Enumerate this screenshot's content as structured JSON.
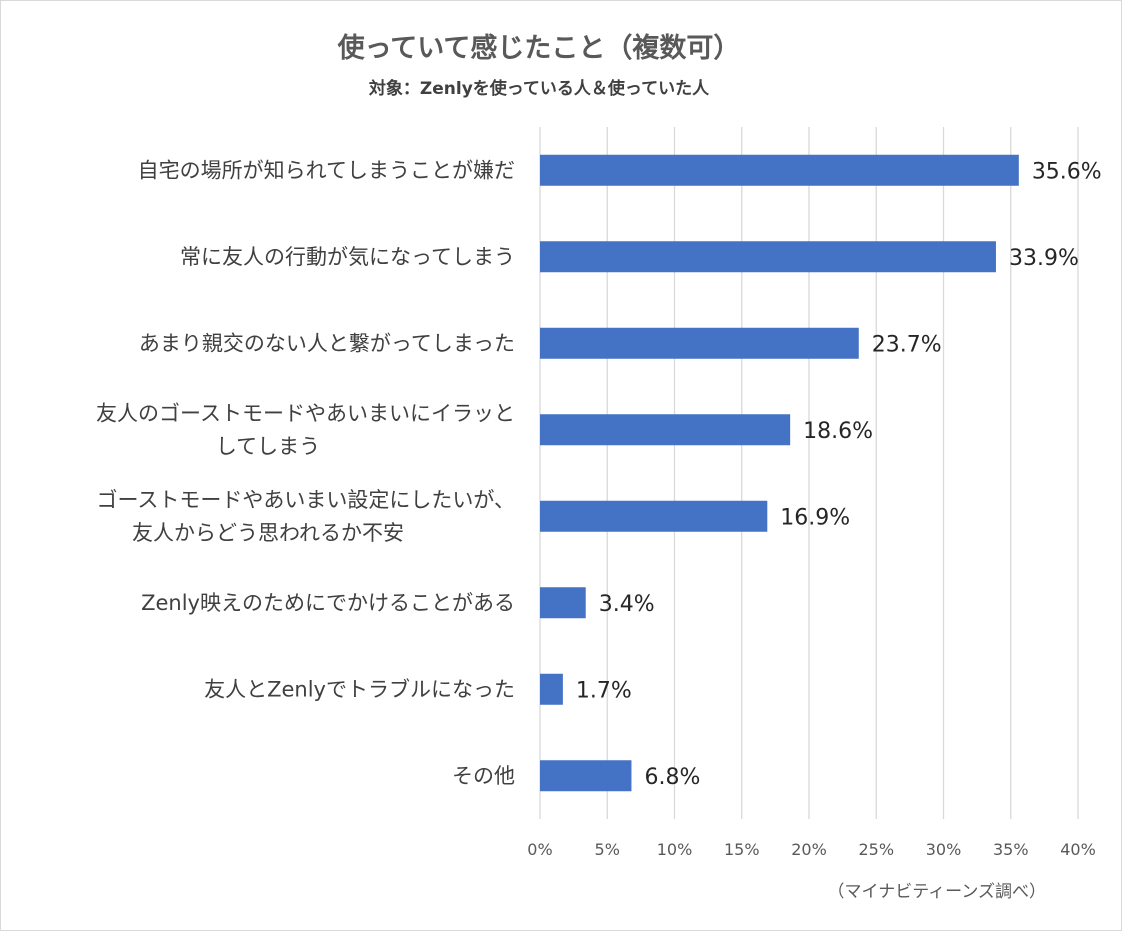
{
  "chart_data": {
    "type": "bar",
    "orientation": "horizontal",
    "title": "使っていて感じたこと（複数可）",
    "subtitle": "対象：Zenlyを使っている人＆使っていた人",
    "categories": [
      [
        "自宅の場所が知られてしまうことが嫌だ"
      ],
      [
        "常に友人の行動が気になってしまう"
      ],
      [
        "あまり親交のない人と繋がってしまった"
      ],
      [
        "友人のゴーストモードやあいまいにイラッと",
        "してしまう"
      ],
      [
        "ゴーストモードやあいまい設定にしたいが、",
        "友人からどう思われるか不安"
      ],
      [
        "Zenly映えのためにでかけることがある"
      ],
      [
        "友人とZenlyでトラブルになった"
      ],
      [
        "その他"
      ]
    ],
    "values": [
      35.6,
      33.9,
      23.7,
      18.6,
      16.9,
      3.4,
      1.7,
      6.8
    ],
    "value_labels": [
      "35.6%",
      "33.9%",
      "23.7%",
      "18.6%",
      "16.9%",
      "3.4%",
      "1.7%",
      "6.8%"
    ],
    "xlim": [
      0,
      40
    ],
    "xticks": [
      0,
      5,
      10,
      15,
      20,
      25,
      30,
      35,
      40
    ],
    "xtick_labels": [
      "0%",
      "5%",
      "10%",
      "15%",
      "20%",
      "25%",
      "30%",
      "35%",
      "40%"
    ],
    "grid": "vertical",
    "legend": "none",
    "bar_color": "#4472c4",
    "source": "（マイナビティーンズ調べ）"
  }
}
